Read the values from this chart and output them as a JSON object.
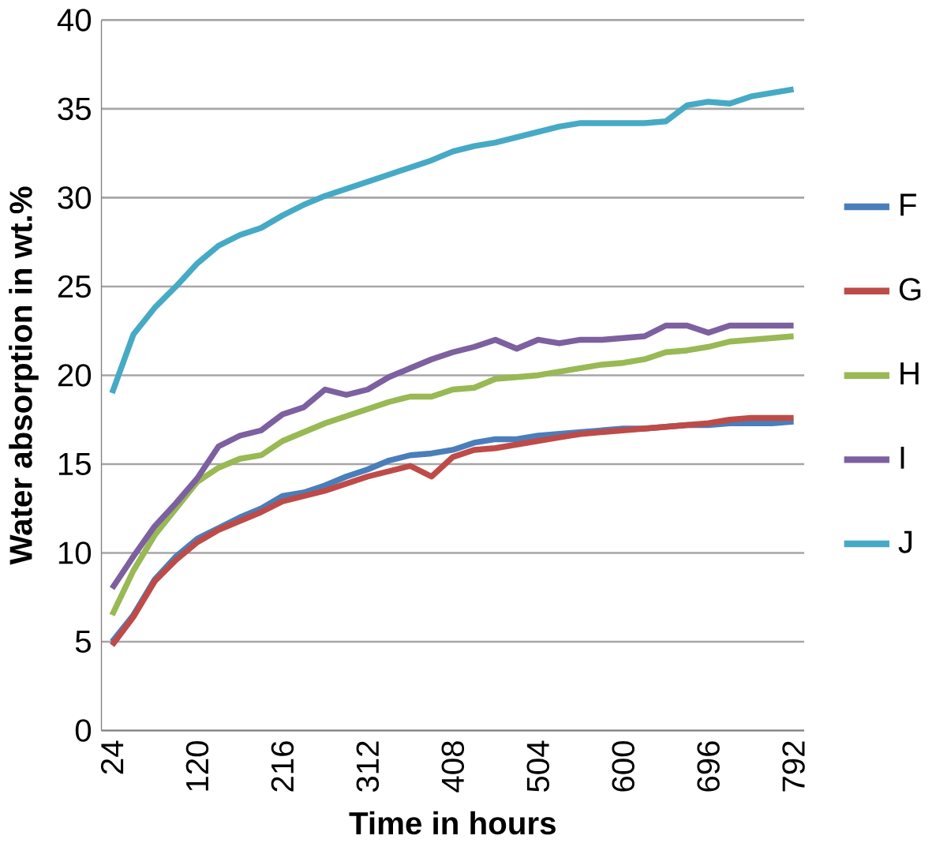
{
  "chart_data": {
    "type": "line",
    "xlabel": "Time in hours",
    "ylabel": "Water absorption in wt.%",
    "categories": [
      "24",
      null,
      null,
      null,
      "120",
      null,
      null,
      null,
      "216",
      null,
      null,
      null,
      "312",
      null,
      null,
      null,
      "408",
      null,
      null,
      null,
      "504",
      null,
      null,
      null,
      "600",
      null,
      null,
      null,
      "696",
      null,
      null,
      null,
      "792"
    ],
    "series": [
      {
        "name": "F",
        "color": "#4a7ebb",
        "values": [
          5,
          6.5,
          8.5,
          9.8,
          10.8,
          11.4,
          12,
          12.5,
          13.2,
          13.4,
          13.8,
          14.3,
          14.7,
          15.2,
          15.5,
          15.6,
          15.8,
          16.2,
          16.4,
          16.4,
          16.6,
          16.7,
          16.8,
          16.9,
          17,
          17,
          null,
          17.2,
          17.2,
          17.3,
          17.3,
          17.3,
          17.4
        ]
      },
      {
        "name": "G",
        "color": "#be4b48",
        "values": [
          4.8,
          6.4,
          8.4,
          9.6,
          10.6,
          11.3,
          11.8,
          12.3,
          12.9,
          13.2,
          13.5,
          13.9,
          14.3,
          14.6,
          14.9,
          14.3,
          15.4,
          15.8,
          15.9,
          16.1,
          16.3,
          16.5,
          16.7,
          16.8,
          16.9,
          17,
          17.1,
          17.2,
          17.3,
          17.5,
          17.6,
          17.6,
          17.6
        ]
      },
      {
        "name": "H",
        "color": "#98b954",
        "values": [
          6.5,
          9,
          11,
          12.5,
          14,
          14.8,
          15.3,
          15.5,
          16.3,
          16.8,
          17.3,
          17.7,
          18.1,
          18.5,
          18.8,
          18.8,
          19.2,
          19.3,
          19.8,
          19.9,
          20,
          20.2,
          20.4,
          20.6,
          20.7,
          20.9,
          21.3,
          21.4,
          21.6,
          21.9,
          22,
          22.1,
          22.2
        ]
      },
      {
        "name": "I",
        "color": "#7d60a0",
        "values": [
          8,
          9.8,
          11.5,
          12.8,
          14.2,
          16,
          16.6,
          16.9,
          17.8,
          18.2,
          19.2,
          18.9,
          19.2,
          19.9,
          20.4,
          20.9,
          21.3,
          21.6,
          22,
          21.5,
          22,
          21.8,
          22,
          22,
          22.1,
          22.2,
          22.8,
          22.8,
          22.4,
          22.8,
          22.8,
          22.8,
          22.8
        ]
      },
      {
        "name": "J",
        "color": "#46aac5",
        "values": [
          19,
          22.3,
          23.8,
          25,
          26.3,
          27.3,
          27.9,
          28.3,
          29,
          29.6,
          30.1,
          30.5,
          30.9,
          31.3,
          31.7,
          32.1,
          32.6,
          32.9,
          33.1,
          33.4,
          33.7,
          34,
          34.2,
          34.2,
          34.2,
          34.2,
          34.3,
          35.2,
          35.4,
          35.3,
          35.7,
          35.9,
          36.1
        ]
      }
    ],
    "ylim": [
      0,
      40
    ],
    "yticks": [
      0,
      5,
      10,
      15,
      20,
      25,
      30,
      35,
      40
    ],
    "grid": "y",
    "legend": "right",
    "marker": "none",
    "line_style": "solid"
  }
}
